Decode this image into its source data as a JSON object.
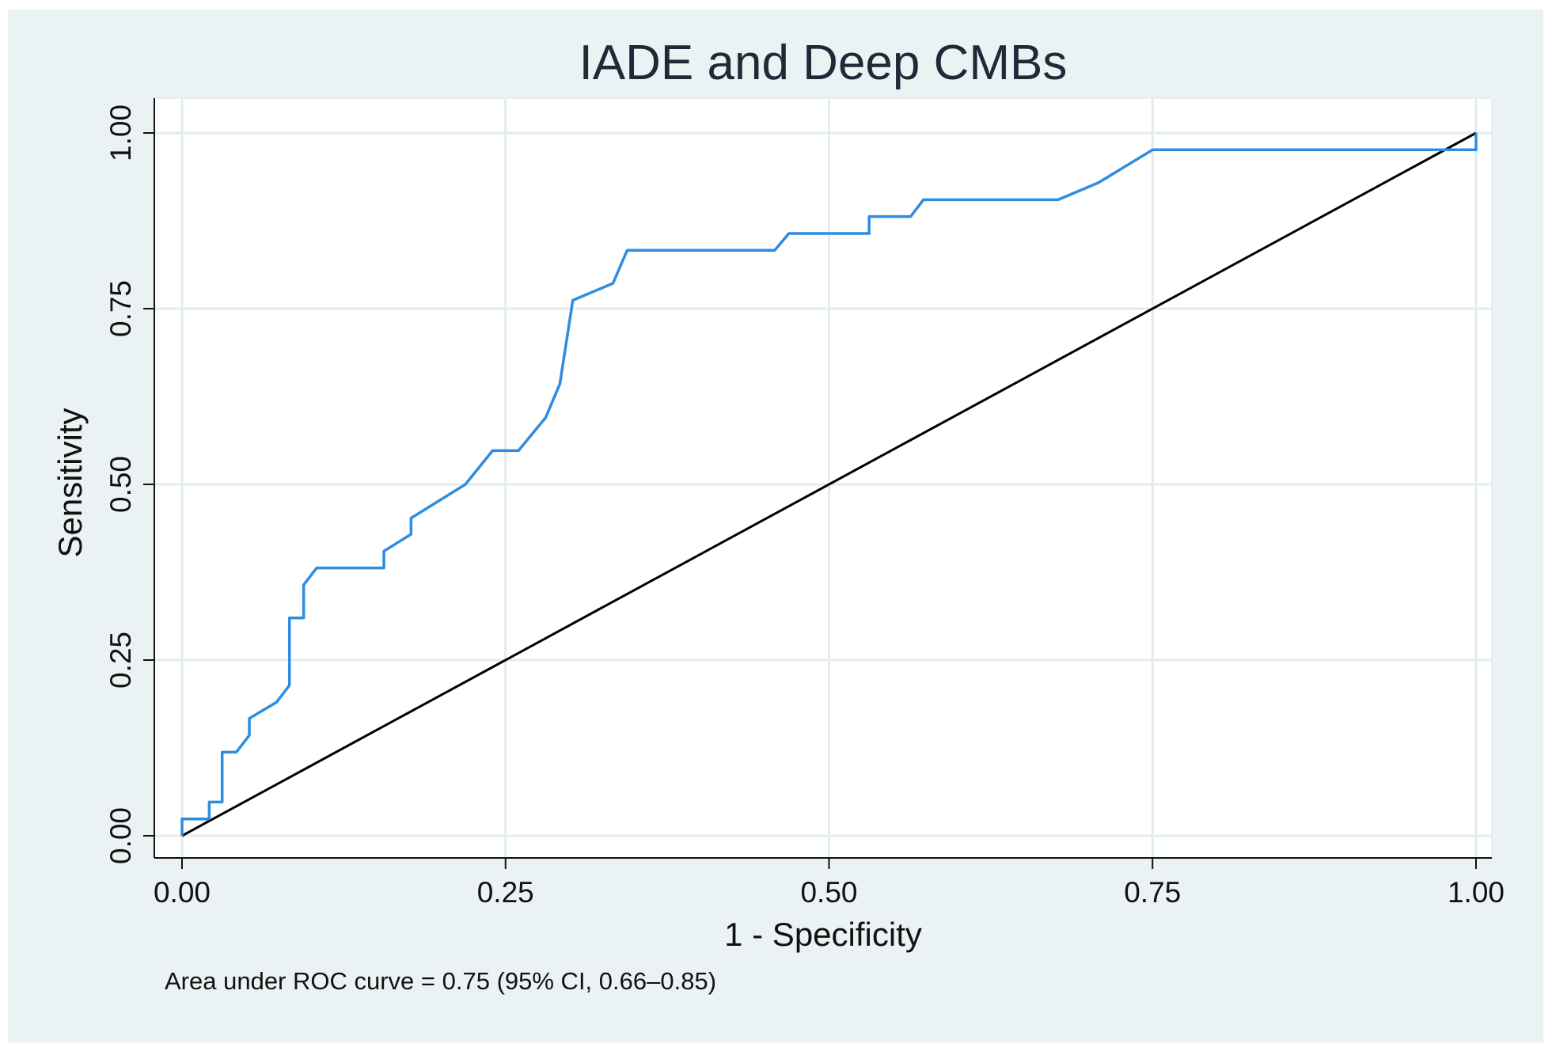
{
  "chart_data": {
    "type": "line",
    "title": "IADE and Deep CMBs",
    "xlabel": "1 - Specificity",
    "ylabel": "Sensitivity",
    "xlim": [
      0,
      1
    ],
    "ylim": [
      0,
      1
    ],
    "xticks": [
      "0.00",
      "0.25",
      "0.50",
      "0.75",
      "1.00"
    ],
    "yticks": [
      "0.00",
      "0.25",
      "0.50",
      "0.75",
      "1.00"
    ],
    "grid": true,
    "note": "Area under ROC curve = 0.75 (95% CI, 0.66–0.85)",
    "series": [
      {
        "role": "roc-curve",
        "color": "#2e8de0",
        "x": [
          0,
          0,
          0.021,
          0.021,
          0.031,
          0.031,
          0.042,
          0.052,
          0.052,
          0.073,
          0.083,
          0.083,
          0.094,
          0.094,
          0.104,
          0.156,
          0.156,
          0.177,
          0.177,
          0.219,
          0.24,
          0.26,
          0.281,
          0.292,
          0.302,
          0.333,
          0.344,
          0.458,
          0.469,
          0.531,
          0.531,
          0.563,
          0.573,
          0.677,
          0.708,
          0.75,
          1,
          1
        ],
        "y": [
          0,
          0.024,
          0.024,
          0.048,
          0.048,
          0.119,
          0.119,
          0.143,
          0.167,
          0.19,
          0.214,
          0.31,
          0.31,
          0.357,
          0.381,
          0.381,
          0.405,
          0.429,
          0.452,
          0.5,
          0.548,
          0.548,
          0.595,
          0.643,
          0.762,
          0.786,
          0.833,
          0.833,
          0.857,
          0.857,
          0.881,
          0.881,
          0.905,
          0.905,
          0.929,
          0.976,
          0.976,
          1
        ]
      },
      {
        "role": "reference-line",
        "color": "#000000",
        "x": [
          0,
          1
        ],
        "y": [
          0,
          1
        ]
      }
    ]
  }
}
